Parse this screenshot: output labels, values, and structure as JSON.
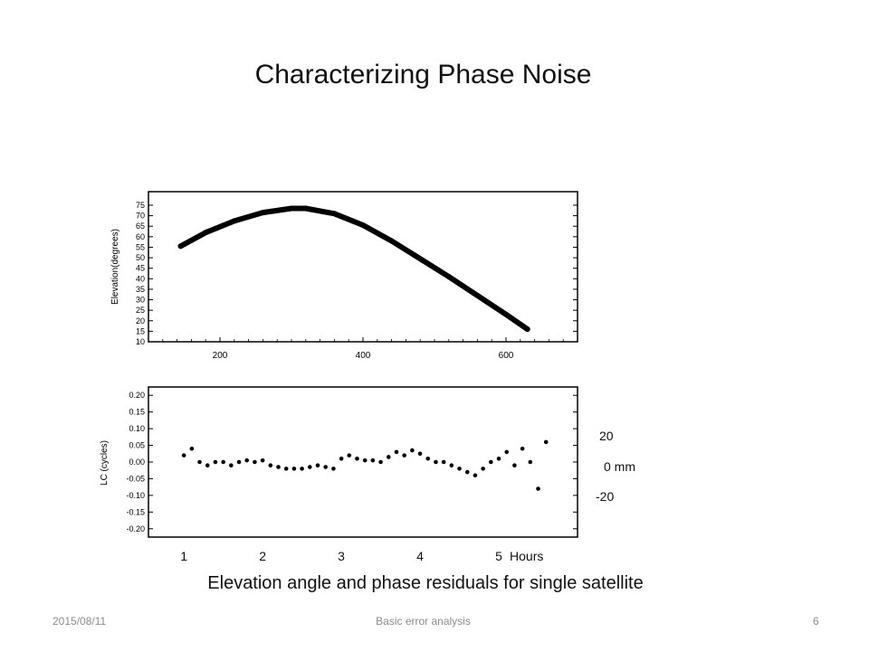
{
  "slide": {
    "title": "Characterizing Phase Noise",
    "caption": "Elevation angle and phase residuals for single satellite"
  },
  "footer": {
    "date": "2015/08/11",
    "center": "Basic error analysis",
    "page": "6"
  },
  "annotations": {
    "mm_top": "20",
    "mm_mid": "0  mm",
    "mm_bottom": "-20"
  },
  "chart_data": [
    {
      "type": "line",
      "ylabel": "Elevation(degrees)",
      "xlim": [
        100,
        700
      ],
      "ylim": [
        10,
        78
      ],
      "yticks": [
        10,
        15,
        20,
        25,
        30,
        35,
        40,
        45,
        50,
        55,
        60,
        65,
        70,
        75
      ],
      "xticks": [
        200,
        400,
        600
      ],
      "color": "#000000",
      "x": [
        145,
        180,
        220,
        260,
        300,
        320,
        360,
        400,
        440,
        480,
        520,
        560,
        600,
        630
      ],
      "y": [
        55.5,
        62,
        67.5,
        71.5,
        73.5,
        73.5,
        71,
        65.5,
        58,
        49.5,
        41,
        32,
        23,
        16
      ]
    },
    {
      "type": "scatter",
      "ylabel": "LC (cycles)",
      "xlim": [
        0.55,
        6.0
      ],
      "ylim": [
        -0.225,
        0.225
      ],
      "yticks": [
        -0.2,
        -0.15,
        -0.1,
        -0.05,
        0.0,
        0.05,
        0.1,
        0.15,
        0.2
      ],
      "xticks": [
        "1",
        "2",
        "3",
        "4",
        "5"
      ],
      "x_unit_label": "Hours",
      "color": "#000000",
      "x": [
        1.0,
        1.1,
        1.2,
        1.3,
        1.4,
        1.5,
        1.6,
        1.7,
        1.8,
        1.9,
        2.0,
        2.1,
        2.2,
        2.3,
        2.4,
        2.5,
        2.6,
        2.7,
        2.8,
        2.9,
        3.0,
        3.1,
        3.2,
        3.3,
        3.4,
        3.5,
        3.6,
        3.7,
        3.8,
        3.9,
        4.0,
        4.1,
        4.2,
        4.3,
        4.4,
        4.5,
        4.6,
        4.7,
        4.8,
        4.9,
        5.0,
        5.1,
        5.2,
        5.3,
        5.4,
        5.5,
        5.6
      ],
      "y": [
        0.02,
        0.04,
        0.0,
        -0.01,
        0.0,
        0.0,
        -0.01,
        0.0,
        0.005,
        0.0,
        0.005,
        -0.01,
        -0.015,
        -0.02,
        -0.02,
        -0.02,
        -0.015,
        -0.01,
        -0.015,
        -0.02,
        0.01,
        0.02,
        0.01,
        0.005,
        0.005,
        0.0,
        0.015,
        0.03,
        0.02,
        0.035,
        0.025,
        0.01,
        0.0,
        0.0,
        -0.01,
        -0.02,
        -0.03,
        -0.04,
        -0.02,
        0.0,
        0.01,
        0.03,
        -0.01,
        0.04,
        0.0,
        -0.08,
        0.06
      ]
    }
  ]
}
